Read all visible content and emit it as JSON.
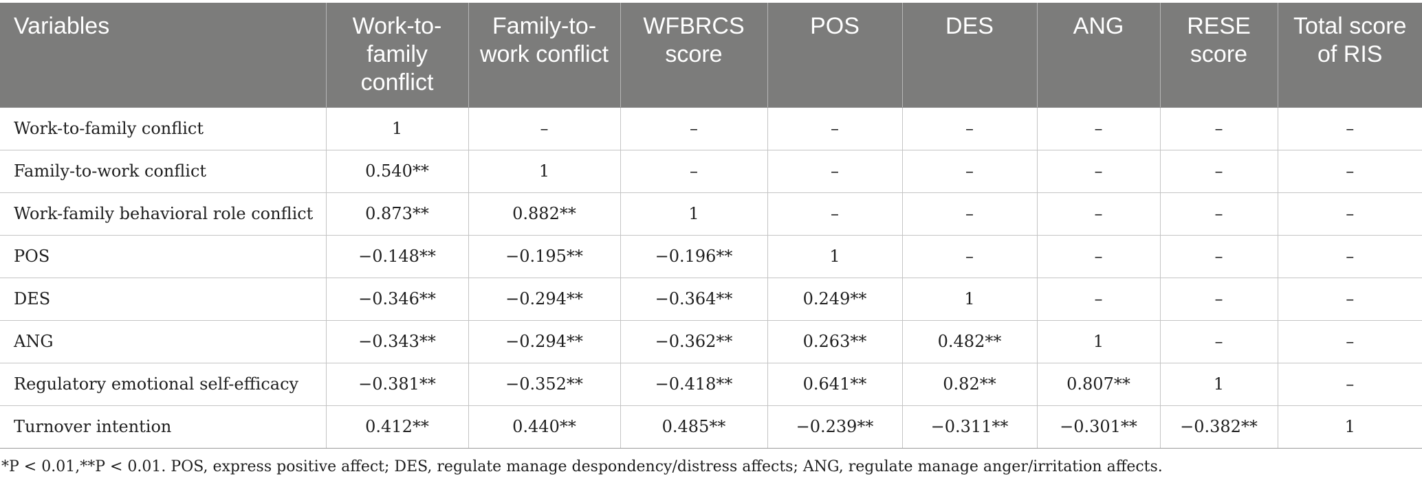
{
  "table": {
    "headers": [
      "Variables",
      "Work-to-family conflict",
      "Family-to-work conflict",
      "WFBRCS score",
      "POS",
      "DES",
      "ANG",
      "RESE score",
      "Total score of RIS"
    ],
    "rows": [
      [
        "Work-to-family conflict",
        "1",
        "–",
        "–",
        "–",
        "–",
        "–",
        "–",
        "–"
      ],
      [
        "Family-to-work conflict",
        "0.540**",
        "1",
        "–",
        "–",
        "–",
        "–",
        "–",
        "–"
      ],
      [
        "Work-family behavioral role conflict",
        "0.873**",
        "0.882**",
        "1",
        "–",
        "–",
        "–",
        "–",
        "–"
      ],
      [
        "POS",
        "−0.148**",
        "−0.195**",
        "−0.196**",
        "1",
        "–",
        "–",
        "–",
        "–"
      ],
      [
        "DES",
        "−0.346**",
        "−0.294**",
        "−0.364**",
        "0.249**",
        "1",
        "–",
        "–",
        "–"
      ],
      [
        "ANG",
        "−0.343**",
        "−0.294**",
        "−0.362**",
        "0.263**",
        "0.482**",
        "1",
        "–",
        "–"
      ],
      [
        "Regulatory emotional self-efficacy",
        "−0.381**",
        "−0.352**",
        "−0.418**",
        "0.641**",
        "0.82**",
        "0.807**",
        "1",
        "–"
      ],
      [
        "Turnover intention",
        "0.412**",
        "0.440**",
        "0.485**",
        "−0.239**",
        "−0.311**",
        "−0.301**",
        "−0.382**",
        "1"
      ]
    ]
  },
  "footnote": "*P < 0.01,**P < 0.01. POS, express positive affect; DES, regulate manage despondency/distress affects; ANG, regulate manage anger/irritation affects."
}
